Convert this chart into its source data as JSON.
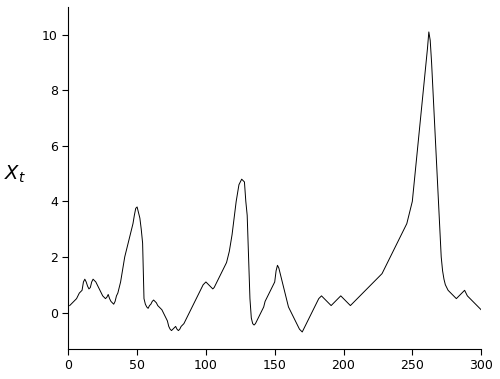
{
  "line_color": "#000000",
  "line_width": 0.7,
  "bg_color": "#ffffff",
  "ylabel": "$X_t$",
  "xlim": [
    0,
    300
  ],
  "ylim": [
    -1.3,
    11.0
  ],
  "xticks": [
    0,
    50,
    100,
    150,
    200,
    250,
    300
  ],
  "yticks": [
    0,
    2,
    4,
    6,
    8,
    10
  ],
  "figsize": [
    5.0,
    3.79
  ],
  "dpi": 100,
  "y": [
    0.25,
    0.3,
    0.35,
    0.4,
    0.45,
    0.5,
    0.6,
    0.7,
    0.75,
    0.8,
    1.1,
    1.2,
    1.1,
    0.95,
    0.85,
    0.9,
    1.1,
    1.2,
    1.15,
    1.1,
    1.0,
    0.9,
    0.8,
    0.7,
    0.6,
    0.55,
    0.5,
    0.55,
    0.65,
    0.5,
    0.4,
    0.35,
    0.3,
    0.4,
    0.6,
    0.7,
    0.9,
    1.1,
    1.4,
    1.7,
    2.0,
    2.2,
    2.4,
    2.6,
    2.8,
    3.0,
    3.2,
    3.5,
    3.75,
    3.8,
    3.6,
    3.4,
    3.0,
    2.5,
    0.5,
    0.3,
    0.2,
    0.15,
    0.25,
    0.3,
    0.4,
    0.45,
    0.4,
    0.35,
    0.25,
    0.2,
    0.15,
    0.1,
    0.0,
    -0.1,
    -0.2,
    -0.3,
    -0.5,
    -0.6,
    -0.65,
    -0.6,
    -0.55,
    -0.5,
    -0.6,
    -0.65,
    -0.6,
    -0.5,
    -0.45,
    -0.4,
    -0.3,
    -0.2,
    -0.1,
    0.0,
    0.1,
    0.2,
    0.3,
    0.4,
    0.5,
    0.6,
    0.7,
    0.8,
    0.9,
    1.0,
    1.05,
    1.1,
    1.05,
    1.0,
    0.95,
    0.9,
    0.85,
    0.9,
    1.0,
    1.1,
    1.2,
    1.3,
    1.4,
    1.5,
    1.6,
    1.7,
    1.8,
    2.0,
    2.2,
    2.5,
    2.8,
    3.2,
    3.6,
    4.0,
    4.3,
    4.6,
    4.7,
    4.8,
    4.75,
    4.7,
    4.0,
    3.5,
    2.0,
    0.5,
    -0.2,
    -0.4,
    -0.45,
    -0.4,
    -0.3,
    -0.2,
    -0.1,
    0.0,
    0.1,
    0.2,
    0.4,
    0.5,
    0.6,
    0.7,
    0.8,
    0.9,
    1.0,
    1.1,
    1.5,
    1.7,
    1.6,
    1.4,
    1.2,
    1.0,
    0.8,
    0.6,
    0.4,
    0.2,
    0.1,
    0.0,
    -0.1,
    -0.2,
    -0.3,
    -0.4,
    -0.5,
    -0.6,
    -0.65,
    -0.7,
    -0.6,
    -0.5,
    -0.4,
    -0.3,
    -0.2,
    -0.1,
    0.0,
    0.1,
    0.2,
    0.3,
    0.4,
    0.5,
    0.55,
    0.6,
    0.55,
    0.5,
    0.45,
    0.4,
    0.35,
    0.3,
    0.25,
    0.3,
    0.35,
    0.4,
    0.45,
    0.5,
    0.55,
    0.6,
    0.55,
    0.5,
    0.45,
    0.4,
    0.35,
    0.3,
    0.25,
    0.3,
    0.35,
    0.4,
    0.45,
    0.5,
    0.55,
    0.6,
    0.65,
    0.7,
    0.75,
    0.8,
    0.85,
    0.9,
    0.95,
    1.0,
    1.05,
    1.1,
    1.15,
    1.2,
    1.25,
    1.3,
    1.35,
    1.4,
    1.5,
    1.6,
    1.7,
    1.8,
    1.9,
    2.0,
    2.1,
    2.2,
    2.3,
    2.4,
    2.5,
    2.6,
    2.7,
    2.8,
    2.9,
    3.0,
    3.1,
    3.2,
    3.4,
    3.6,
    3.8,
    4.0,
    4.5,
    5.0,
    5.5,
    6.0,
    6.5,
    7.0,
    7.5,
    8.0,
    8.5,
    9.0,
    9.5,
    10.1,
    9.8,
    9.0,
    8.0,
    7.0,
    6.0,
    5.0,
    4.0,
    3.0,
    2.0,
    1.5,
    1.2,
    1.0,
    0.9,
    0.8,
    0.75,
    0.7,
    0.65,
    0.6,
    0.55,
    0.5,
    0.55,
    0.6,
    0.65,
    0.7,
    0.75,
    0.8,
    0.7,
    0.6,
    0.55,
    0.5,
    0.45,
    0.4,
    0.35,
    0.3,
    0.25,
    0.2,
    0.15,
    0.1
  ]
}
